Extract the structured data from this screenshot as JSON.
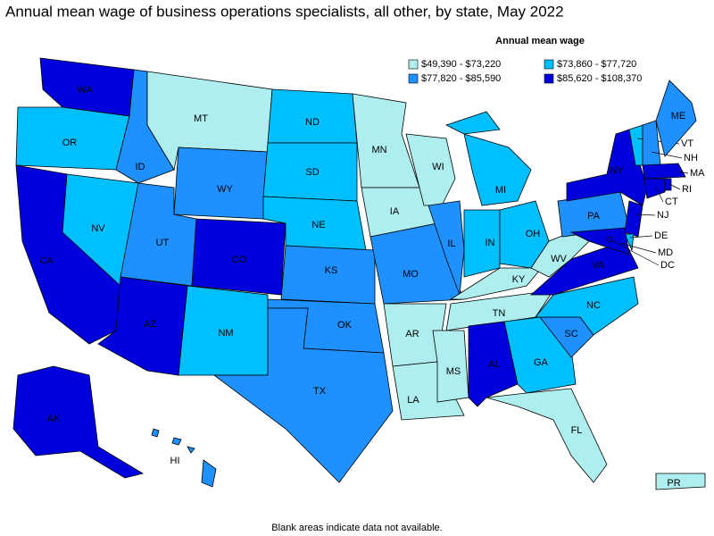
{
  "title": "Annual mean wage of business operations specialists, all other, by state, May 2022",
  "legend": {
    "title": "Annual mean wage",
    "bins": [
      {
        "label": "$49,390 - $73,220",
        "color": "#afeeee"
      },
      {
        "label": "$73,860 - $77,720",
        "color": "#00bfff"
      },
      {
        "label": "$77,820 - $85,590",
        "color": "#1e90ff"
      },
      {
        "label": "$85,620 - $108,370",
        "color": "#0000dd"
      }
    ]
  },
  "states": [
    {
      "abbr": "WA",
      "bin": 3
    },
    {
      "abbr": "OR",
      "bin": 1
    },
    {
      "abbr": "CA",
      "bin": 3
    },
    {
      "abbr": "NV",
      "bin": 1
    },
    {
      "abbr": "ID",
      "bin": 2
    },
    {
      "abbr": "MT",
      "bin": 0
    },
    {
      "abbr": "WY",
      "bin": 2
    },
    {
      "abbr": "UT",
      "bin": 2
    },
    {
      "abbr": "CO",
      "bin": 3
    },
    {
      "abbr": "AZ",
      "bin": 3
    },
    {
      "abbr": "NM",
      "bin": 1
    },
    {
      "abbr": "ND",
      "bin": 1
    },
    {
      "abbr": "SD",
      "bin": 1
    },
    {
      "abbr": "NE",
      "bin": 1
    },
    {
      "abbr": "KS",
      "bin": 2
    },
    {
      "abbr": "OK",
      "bin": 2
    },
    {
      "abbr": "TX",
      "bin": 2
    },
    {
      "abbr": "MN",
      "bin": 0
    },
    {
      "abbr": "IA",
      "bin": 0
    },
    {
      "abbr": "MO",
      "bin": 2
    },
    {
      "abbr": "AR",
      "bin": 0
    },
    {
      "abbr": "LA",
      "bin": 0
    },
    {
      "abbr": "WI",
      "bin": 0
    },
    {
      "abbr": "IL",
      "bin": 2
    },
    {
      "abbr": "MI",
      "bin": 1
    },
    {
      "abbr": "IN",
      "bin": 1
    },
    {
      "abbr": "OH",
      "bin": 1
    },
    {
      "abbr": "KY",
      "bin": 0
    },
    {
      "abbr": "TN",
      "bin": 0
    },
    {
      "abbr": "MS",
      "bin": 0
    },
    {
      "abbr": "AL",
      "bin": 3
    },
    {
      "abbr": "GA",
      "bin": 1
    },
    {
      "abbr": "FL",
      "bin": 0
    },
    {
      "abbr": "SC",
      "bin": 2
    },
    {
      "abbr": "NC",
      "bin": 1
    },
    {
      "abbr": "VA",
      "bin": 3
    },
    {
      "abbr": "WV",
      "bin": 0
    },
    {
      "abbr": "PA",
      "bin": 2
    },
    {
      "abbr": "NY",
      "bin": 3
    },
    {
      "abbr": "NJ",
      "bin": 3
    },
    {
      "abbr": "DE",
      "bin": 1
    },
    {
      "abbr": "MD",
      "bin": 3
    },
    {
      "abbr": "VT",
      "bin": 1
    },
    {
      "abbr": "NH",
      "bin": 2
    },
    {
      "abbr": "ME",
      "bin": 2
    },
    {
      "abbr": "MA",
      "bin": 3
    },
    {
      "abbr": "CT",
      "bin": 3
    },
    {
      "abbr": "RI",
      "bin": 3
    },
    {
      "abbr": "AK",
      "bin": 3
    },
    {
      "abbr": "HI",
      "bin": 2
    },
    {
      "abbr": "PR",
      "bin": 0
    },
    {
      "abbr": "DC",
      "bin": 3
    }
  ],
  "footnote": "Blank areas indicate data not available."
}
